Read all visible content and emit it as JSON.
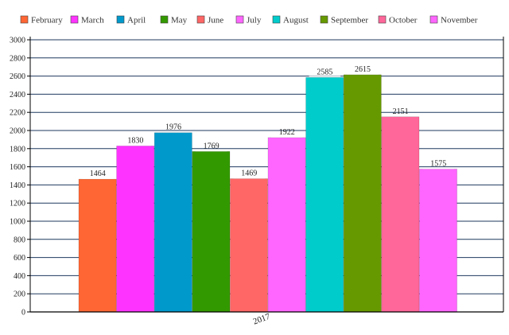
{
  "chart_data": {
    "type": "bar",
    "title": "",
    "xlabel": "",
    "ylabel": "",
    "categories": [
      "2017"
    ],
    "ylim": [
      0,
      3000
    ],
    "ytick_step": 200,
    "grid": true,
    "legend_position": "top",
    "series": [
      {
        "name": "February",
        "values": [
          1464
        ],
        "color": "#ff6633"
      },
      {
        "name": "March",
        "values": [
          1830
        ],
        "color": "#ff33ff"
      },
      {
        "name": "April",
        "values": [
          1976
        ],
        "color": "#0099cc"
      },
      {
        "name": "May",
        "values": [
          1769
        ],
        "color": "#339900"
      },
      {
        "name": "June",
        "values": [
          1469
        ],
        "color": "#ff6666"
      },
      {
        "name": "July",
        "values": [
          1922
        ],
        "color": "#ff66ff"
      },
      {
        "name": "August",
        "values": [
          2585
        ],
        "color": "#00cccc"
      },
      {
        "name": "September",
        "values": [
          2615
        ],
        "color": "#669900"
      },
      {
        "name": "October",
        "values": [
          2151
        ],
        "color": "#ff6699"
      },
      {
        "name": "November",
        "values": [
          1575
        ],
        "color": "#ff66ff"
      }
    ],
    "colors": {
      "gridline": "#1f3a5f",
      "axis": "#000000",
      "text": "#222222"
    }
  }
}
